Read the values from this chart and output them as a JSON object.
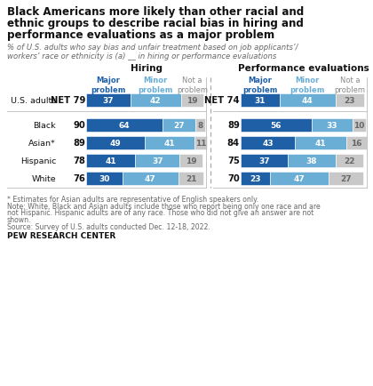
{
  "title_lines": [
    "Black Americans more likely than other racial and",
    "ethnic groups to describe racial bias in hiring and",
    "performance evaluations as a major problem"
  ],
  "subtitle_lines": [
    "% of U.S. adults who say bias and unfair treatment based on job applicants’/",
    "workers’ race or ethnicity is (a) __ in hiring or performance evaluations"
  ],
  "hiring_label": "Hiring",
  "perf_label": "Performance evaluations",
  "footnote1": "* Estimates for Asian adults are representative of English speakers only.",
  "footnote2_lines": [
    "Note: White, Black and Asian adults include those who report being only one race and are",
    "not Hispanic. Hispanic adults are of any race. Those who did not give an answer are not",
    "shown."
  ],
  "footnote3": "Source: Survey of U.S. adults conducted Dec. 12-18, 2022.",
  "source_label": "PEW RESEARCH CENTER",
  "rows": [
    {
      "label": "U.S. adults",
      "net_h": "NET 79",
      "net_p": "NET 74",
      "hiring": [
        37,
        42,
        19
      ],
      "perf": [
        31,
        44,
        23
      ],
      "us_adults": true
    },
    {
      "label": "Black",
      "net_h": "90",
      "net_p": "89",
      "hiring": [
        64,
        27,
        8
      ],
      "perf": [
        56,
        33,
        10
      ],
      "us_adults": false
    },
    {
      "label": "Asian*",
      "net_h": "89",
      "net_p": "84",
      "hiring": [
        49,
        41,
        11
      ],
      "perf": [
        43,
        41,
        16
      ],
      "us_adults": false
    },
    {
      "label": "Hispanic",
      "net_h": "78",
      "net_p": "75",
      "hiring": [
        41,
        37,
        19
      ],
      "perf": [
        37,
        38,
        22
      ],
      "us_adults": false
    },
    {
      "label": "White",
      "net_h": "76",
      "net_p": "70",
      "hiring": [
        30,
        47,
        21
      ],
      "perf": [
        23,
        47,
        27
      ],
      "us_adults": false
    }
  ],
  "color_major": "#1f5fa6",
  "color_minor": "#6aaed6",
  "color_not": "#c8c8c8",
  "color_not_text": "#888888",
  "bg_color": "#ffffff"
}
